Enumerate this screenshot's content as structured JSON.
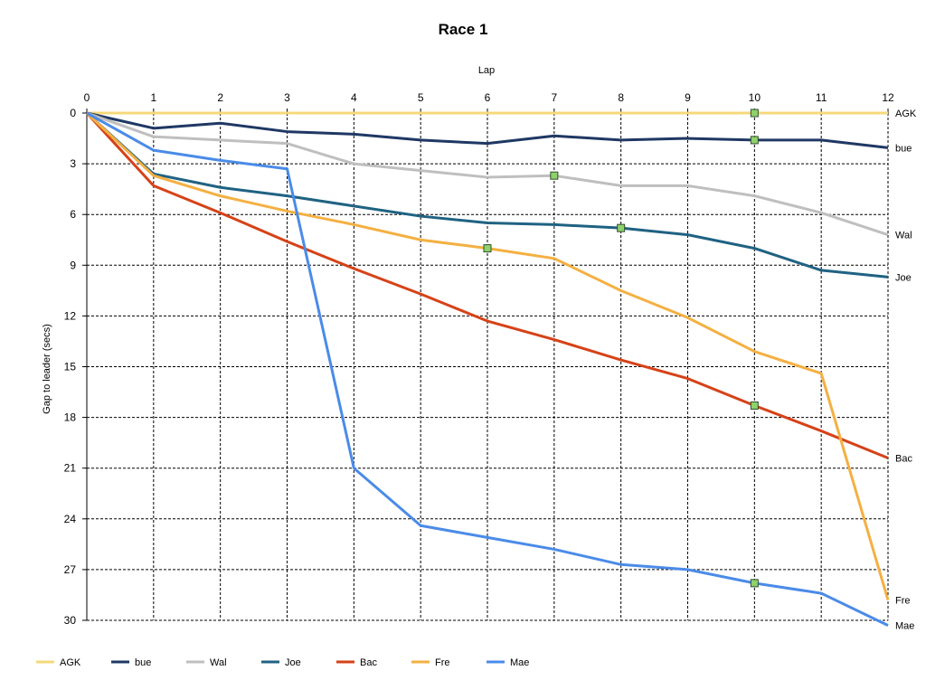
{
  "chart_data": {
    "type": "line",
    "title": "Race 1",
    "xlabel": "Lap",
    "ylabel": "Gap to leader (secs)",
    "x": [
      0,
      1,
      2,
      3,
      4,
      5,
      6,
      7,
      8,
      9,
      10,
      11,
      12
    ],
    "xlim": [
      0,
      12
    ],
    "ylim": [
      0,
      30
    ],
    "y_inverted": true,
    "x_axis_position": "top",
    "x_ticks": [
      "0",
      "1",
      "2",
      "3",
      "4",
      "5",
      "6",
      "7",
      "8",
      "9",
      "10",
      "11",
      "12"
    ],
    "y_ticks": [
      "0",
      "3",
      "6",
      "9",
      "12",
      "15",
      "18",
      "21",
      "24",
      "27",
      "30"
    ],
    "grid": true,
    "legend_position": "bottom-left",
    "series": [
      {
        "name": "AGK",
        "color": "#f5d87a",
        "values": [
          0,
          0,
          0,
          0,
          0,
          0,
          0,
          0,
          0,
          0,
          0,
          0,
          0
        ],
        "markers": [
          10
        ],
        "end_label": "AGK"
      },
      {
        "name": "bue",
        "color": "#1f3864",
        "values": [
          0,
          0.9,
          0.6,
          1.1,
          1.25,
          1.6,
          1.8,
          1.35,
          1.6,
          1.5,
          1.6,
          1.6,
          2.05
        ],
        "markers": [
          10
        ],
        "end_label": "bue"
      },
      {
        "name": "Wal",
        "color": "#bfbfbf",
        "values": [
          0,
          1.4,
          1.6,
          1.8,
          3.0,
          3.4,
          3.8,
          3.7,
          4.3,
          4.3,
          4.9,
          5.9,
          7.2
        ],
        "markers": [
          7
        ],
        "end_label": "Wal"
      },
      {
        "name": "Joe",
        "color": "#1f6282",
        "values": [
          0,
          3.6,
          4.4,
          4.9,
          5.5,
          6.1,
          6.5,
          6.6,
          6.8,
          7.2,
          8.0,
          9.3,
          9.7
        ],
        "markers": [
          8
        ],
        "end_label": "Joe"
      },
      {
        "name": "Bac",
        "color": "#d64218",
        "values": [
          0,
          4.3,
          5.9,
          7.6,
          9.2,
          10.7,
          12.3,
          13.4,
          14.6,
          15.7,
          17.3,
          18.8,
          20.4
        ],
        "markers": [
          10
        ],
        "end_label": "Bac"
      },
      {
        "name": "Fre",
        "color": "#f4b042",
        "values": [
          0,
          3.7,
          4.9,
          5.8,
          6.6,
          7.5,
          8.0,
          8.6,
          10.5,
          12.1,
          14.1,
          15.4,
          28.8
        ],
        "markers": [
          6
        ],
        "end_label": "Fre"
      },
      {
        "name": "Mae",
        "color": "#4a8be8",
        "values": [
          0,
          2.2,
          2.8,
          3.3,
          21.0,
          24.4,
          25.1,
          25.8,
          26.7,
          27.0,
          27.8,
          28.4,
          30.3
        ],
        "markers": [
          10
        ],
        "end_label": "Mae"
      }
    ]
  }
}
